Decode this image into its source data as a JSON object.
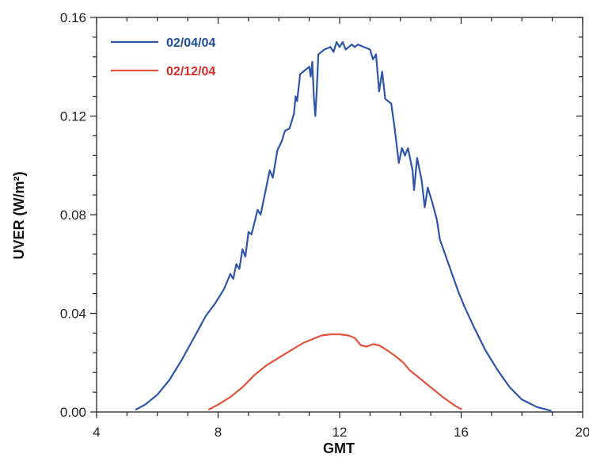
{
  "chart_data": {
    "type": "line",
    "title": "",
    "xlabel": "GMT",
    "ylabel": "UVER (W/m²)",
    "xlim": [
      4,
      20
    ],
    "ylim": [
      0,
      0.16
    ],
    "x_ticks": [
      4,
      8,
      12,
      16,
      20
    ],
    "x_tick_labels": [
      "4",
      "8",
      "12",
      "16",
      "20"
    ],
    "y_ticks": [
      0,
      0.04,
      0.08,
      0.12,
      0.16
    ],
    "y_tick_labels": [
      "0.00",
      "0.04",
      "0.08",
      "0.12",
      "0.16"
    ],
    "grid": false,
    "legend_position": "top-left",
    "series": [
      {
        "name": "02/04/04",
        "color": "#2e55a6",
        "label_color": "#1f4e9a",
        "points": [
          [
            5.3,
            0.001
          ],
          [
            5.6,
            0.003
          ],
          [
            6.0,
            0.007
          ],
          [
            6.4,
            0.013
          ],
          [
            6.8,
            0.021
          ],
          [
            7.2,
            0.03
          ],
          [
            7.6,
            0.039
          ],
          [
            7.9,
            0.044
          ],
          [
            8.2,
            0.05
          ],
          [
            8.4,
            0.056
          ],
          [
            8.5,
            0.054
          ],
          [
            8.6,
            0.06
          ],
          [
            8.7,
            0.058
          ],
          [
            8.8,
            0.066
          ],
          [
            8.9,
            0.063
          ],
          [
            9.0,
            0.073
          ],
          [
            9.1,
            0.072
          ],
          [
            9.3,
            0.082
          ],
          [
            9.4,
            0.08
          ],
          [
            9.6,
            0.092
          ],
          [
            9.7,
            0.098
          ],
          [
            9.8,
            0.095
          ],
          [
            9.95,
            0.106
          ],
          [
            10.1,
            0.11
          ],
          [
            10.2,
            0.114
          ],
          [
            10.35,
            0.115
          ],
          [
            10.5,
            0.121
          ],
          [
            10.55,
            0.128
          ],
          [
            10.6,
            0.126
          ],
          [
            10.7,
            0.137
          ],
          [
            10.9,
            0.139
          ],
          [
            11.0,
            0.14
          ],
          [
            11.05,
            0.136
          ],
          [
            11.1,
            0.142
          ],
          [
            11.15,
            0.128
          ],
          [
            11.2,
            0.12
          ],
          [
            11.25,
            0.131
          ],
          [
            11.3,
            0.145
          ],
          [
            11.5,
            0.147
          ],
          [
            11.7,
            0.148
          ],
          [
            11.8,
            0.146
          ],
          [
            11.9,
            0.15
          ],
          [
            12.0,
            0.148
          ],
          [
            12.1,
            0.15
          ],
          [
            12.2,
            0.147
          ],
          [
            12.4,
            0.149
          ],
          [
            12.5,
            0.148
          ],
          [
            12.6,
            0.149
          ],
          [
            12.8,
            0.148
          ],
          [
            13.0,
            0.147
          ],
          [
            13.1,
            0.143
          ],
          [
            13.2,
            0.145
          ],
          [
            13.3,
            0.13
          ],
          [
            13.4,
            0.138
          ],
          [
            13.5,
            0.127
          ],
          [
            13.7,
            0.125
          ],
          [
            13.8,
            0.116
          ],
          [
            13.95,
            0.101
          ],
          [
            14.05,
            0.107
          ],
          [
            14.15,
            0.104
          ],
          [
            14.25,
            0.107
          ],
          [
            14.4,
            0.098
          ],
          [
            14.45,
            0.09
          ],
          [
            14.55,
            0.103
          ],
          [
            14.7,
            0.094
          ],
          [
            14.8,
            0.083
          ],
          [
            14.9,
            0.091
          ],
          [
            15.05,
            0.085
          ],
          [
            15.2,
            0.078
          ],
          [
            15.3,
            0.07
          ],
          [
            15.5,
            0.063
          ],
          [
            15.7,
            0.056
          ],
          [
            15.9,
            0.049
          ],
          [
            16.1,
            0.043
          ],
          [
            16.4,
            0.035
          ],
          [
            16.8,
            0.025
          ],
          [
            17.2,
            0.017
          ],
          [
            17.6,
            0.01
          ],
          [
            18.0,
            0.005
          ],
          [
            18.5,
            0.002
          ],
          [
            18.95,
            0.0005
          ]
        ]
      },
      {
        "name": "02/12/04",
        "color": "#e0533d",
        "label_color": "#d42e2a",
        "points": [
          [
            7.7,
            0.001
          ],
          [
            8.0,
            0.003
          ],
          [
            8.4,
            0.006
          ],
          [
            8.8,
            0.01
          ],
          [
            9.2,
            0.015
          ],
          [
            9.6,
            0.019
          ],
          [
            10.0,
            0.022
          ],
          [
            10.4,
            0.025
          ],
          [
            10.8,
            0.028
          ],
          [
            11.1,
            0.0295
          ],
          [
            11.4,
            0.031
          ],
          [
            11.7,
            0.0315
          ],
          [
            12.0,
            0.0315
          ],
          [
            12.3,
            0.031
          ],
          [
            12.5,
            0.03
          ],
          [
            12.6,
            0.0285
          ],
          [
            12.7,
            0.027
          ],
          [
            12.9,
            0.0265
          ],
          [
            13.1,
            0.0275
          ],
          [
            13.3,
            0.027
          ],
          [
            13.5,
            0.0255
          ],
          [
            13.8,
            0.023
          ],
          [
            14.1,
            0.02
          ],
          [
            14.3,
            0.017
          ],
          [
            14.6,
            0.014
          ],
          [
            15.0,
            0.01
          ],
          [
            15.4,
            0.006
          ],
          [
            15.8,
            0.0025
          ],
          [
            16.0,
            0.0012
          ]
        ]
      }
    ]
  }
}
